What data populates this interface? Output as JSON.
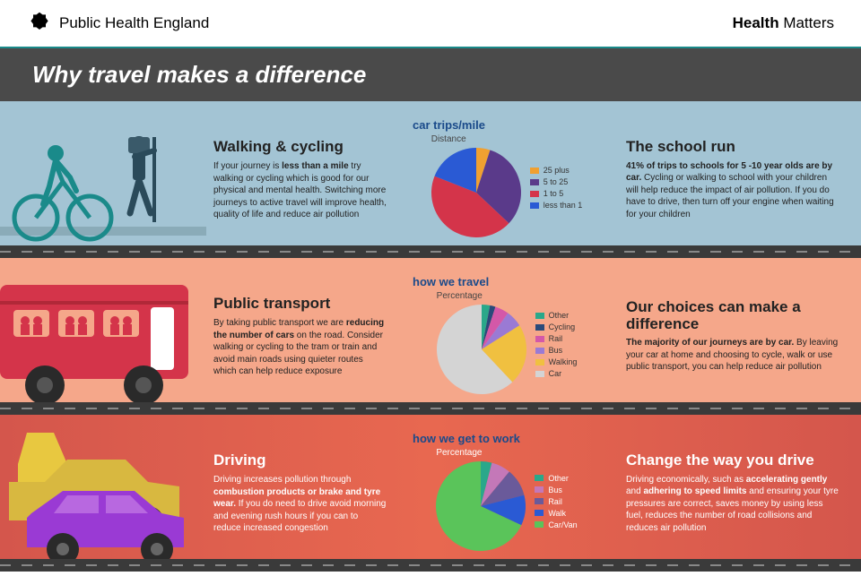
{
  "header": {
    "org": "Public Health England",
    "brand_prefix": "Health",
    "brand_suffix": " Matters"
  },
  "title": "Why travel makes a difference",
  "rows": [
    {
      "background_color": "#a3c4d4",
      "illustration": "cyclist-hiker",
      "left": {
        "heading": "Walking & cycling",
        "body_html": "If your journey is <b>less than a mile</b> try walking or cycling which is good for our physical and mental health. Switching more journeys to active travel will improve health, quality of life and reduce air pollution"
      },
      "chart": {
        "title": "car trips/mile",
        "subtitle": "Distance",
        "type": "pie",
        "radius": 50,
        "slices": [
          {
            "label": "25 plus",
            "value": 5,
            "color": "#f0a030"
          },
          {
            "label": "5 to 25",
            "value": 32,
            "color": "#5a3a8a"
          },
          {
            "label": "1 to 5",
            "value": 44,
            "color": "#d4344a"
          },
          {
            "label": "less than 1",
            "value": 19,
            "color": "#2a5ad4"
          }
        ]
      },
      "right": {
        "heading": "The school run",
        "body_html": "<b>41% of trips to schools for 5 -10 year olds are by car.</b> Cycling or walking to school with your children will help reduce the impact of air pollution. If you do have to drive, then turn off your engine when waiting for your children"
      }
    },
    {
      "background_color": "#f5a78a",
      "illustration": "bus",
      "left": {
        "heading": "Public transport",
        "body_html": "By taking public transport we are <b>reducing the number of cars</b> on the road. Consider walking or cycling to the tram or train and avoid main roads using quieter routes which can help reduce exposure"
      },
      "chart": {
        "title": "how we travel",
        "subtitle": "Percentage",
        "type": "pie",
        "radius": 50,
        "slices": [
          {
            "label": "Other",
            "value": 3,
            "color": "#2aa88a"
          },
          {
            "label": "Cycling",
            "value": 2,
            "color": "#2a4a7a"
          },
          {
            "label": "Rail",
            "value": 5,
            "color": "#d458a8"
          },
          {
            "label": "Bus",
            "value": 6,
            "color": "#9a7ad4"
          },
          {
            "label": "Walking",
            "value": 22,
            "color": "#f0c040"
          },
          {
            "label": "Car",
            "value": 62,
            "color": "#d4d4d4"
          }
        ]
      },
      "right": {
        "heading": "Our choices can make a difference",
        "body_html": "<b>The majority of our journeys are by car.</b> By leaving your car at home and choosing to cycle, walk or use public transport, you can help reduce air pollution"
      }
    },
    {
      "background_color": "#e86850",
      "illustration": "cars",
      "left": {
        "heading": "Driving",
        "body_html": "Driving increases pollution through <b>combustion products or brake and tyre wear.</b> If you do need to drive avoid morning and evening rush hours if you can to reduce increased congestion"
      },
      "chart": {
        "title": "how we get to work",
        "subtitle": "Percentage",
        "type": "pie",
        "radius": 50,
        "slices": [
          {
            "label": "Other",
            "value": 4,
            "color": "#2aa88a"
          },
          {
            "label": "Bus",
            "value": 7,
            "color": "#c478b8"
          },
          {
            "label": "Rail",
            "value": 10,
            "color": "#6a5a9a"
          },
          {
            "label": "Walk",
            "value": 11,
            "color": "#2a5ad4"
          },
          {
            "label": "Car/Van",
            "value": 68,
            "color": "#5ac45a"
          }
        ]
      },
      "right": {
        "heading": "Change the way you drive",
        "body_html": "Driving economically, such as <b>accelerating gently</b> and <b>adhering to speed limits</b> and ensuring your tyre pressures are correct, saves money by using less fuel, reduces the number of road collisions and reduces air pollution"
      }
    }
  ]
}
